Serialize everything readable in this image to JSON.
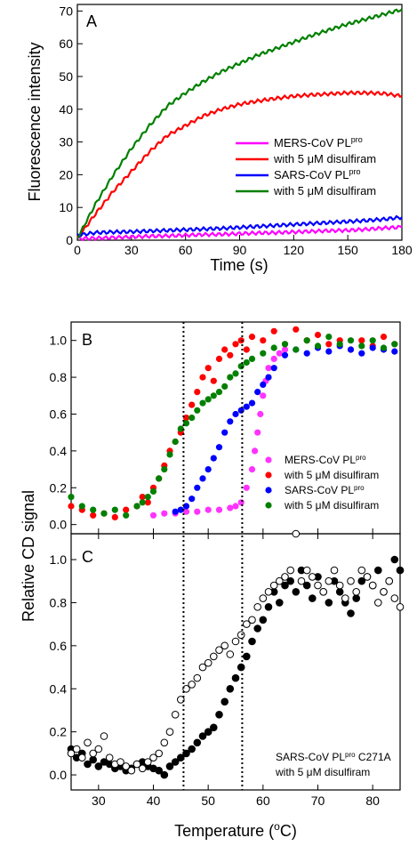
{
  "chart_data": [
    {
      "type": "line",
      "panel_label": "A",
      "xlabel": "Time (s)",
      "ylabel": "Fluorescence intensity",
      "xlim": [
        0,
        180
      ],
      "ylim": [
        0,
        72
      ],
      "xticks": [
        0,
        30,
        60,
        90,
        120,
        150,
        180
      ],
      "yticks": [
        0,
        10,
        20,
        30,
        40,
        50,
        60,
        70
      ],
      "legend_position": "center-right",
      "series": [
        {
          "name": "MERS-CoV PL",
          "name_sup": "pro",
          "color": "#ff00ff",
          "x": [
            0,
            10,
            20,
            30,
            40,
            50,
            60,
            70,
            80,
            90,
            100,
            110,
            120,
            130,
            140,
            150,
            160,
            170,
            180
          ],
          "y": [
            0.5,
            0.6,
            0.8,
            1.0,
            1.2,
            1.3,
            1.5,
            1.7,
            1.8,
            2.0,
            2.2,
            2.3,
            2.5,
            2.7,
            2.9,
            3.0,
            3.3,
            3.7,
            4.0
          ]
        },
        {
          "name": "with 5 μM disulfiram",
          "color": "#ff0000",
          "x": [
            0,
            10,
            20,
            30,
            40,
            50,
            60,
            70,
            80,
            90,
            100,
            110,
            120,
            130,
            140,
            150,
            160,
            170,
            180
          ],
          "y": [
            0.5,
            8,
            15,
            21,
            27,
            32,
            35,
            38,
            40,
            41.5,
            42.5,
            43.3,
            44,
            44.4,
            44.7,
            45,
            45,
            44.8,
            44
          ]
        },
        {
          "name": "SARS-CoV PL",
          "name_sup": "pro",
          "color": "#0000ff",
          "x": [
            0,
            10,
            20,
            30,
            40,
            50,
            60,
            70,
            80,
            90,
            100,
            110,
            120,
            130,
            140,
            150,
            160,
            170,
            180
          ],
          "y": [
            1.5,
            2.3,
            2.5,
            2.6,
            2.8,
            3.0,
            3.2,
            3.4,
            3.6,
            3.9,
            4.2,
            4.5,
            4.8,
            5.1,
            5.4,
            5.7,
            6.0,
            6.4,
            7.0
          ]
        },
        {
          "name": "with 5 μM disulfiram",
          "color": "#008000",
          "x": [
            0,
            10,
            20,
            30,
            40,
            50,
            60,
            70,
            80,
            90,
            100,
            110,
            120,
            130,
            140,
            150,
            160,
            170,
            180
          ],
          "y": [
            0.5,
            11,
            20,
            28,
            35,
            41,
            45,
            48.5,
            51.5,
            54,
            56.5,
            58.5,
            60.5,
            62.5,
            64.3,
            66,
            67.5,
            69,
            70.5
          ]
        }
      ]
    },
    {
      "type": "scatter",
      "panel_label": "B",
      "xlim": [
        25,
        85
      ],
      "ylim": [
        -0.05,
        1.1
      ],
      "yticks": [
        "0.0",
        "0.2",
        "0.4",
        "0.6",
        "0.8",
        "1.0"
      ],
      "legend_position": "bottom-right",
      "series": [
        {
          "name": "MERS-CoV PL",
          "name_sup": "pro",
          "color": "#ff33ff",
          "x": [
            40,
            42,
            44,
            46,
            48,
            50,
            52,
            54,
            55,
            56,
            57,
            58,
            58.5,
            59,
            59.5,
            60,
            60.5,
            61,
            62,
            63,
            64
          ],
          "y": [
            0.05,
            0.06,
            0.06,
            0.07,
            0.07,
            0.08,
            0.08,
            0.09,
            0.1,
            0.12,
            0.2,
            0.3,
            0.4,
            0.5,
            0.6,
            0.7,
            0.78,
            0.85,
            0.9,
            0.93,
            0.95
          ]
        },
        {
          "name": "with 5 μM disulfiram",
          "color": "#ff0000",
          "x": [
            25,
            27,
            29,
            31,
            33,
            35,
            37,
            38,
            39,
            40,
            41,
            42,
            43,
            44,
            45,
            46,
            47,
            48,
            49,
            50,
            51,
            52,
            53,
            54,
            55,
            56,
            57,
            58,
            60,
            62,
            64,
            66,
            68,
            70,
            72,
            74,
            76,
            78,
            80,
            82,
            84
          ],
          "y": [
            0.1,
            0.08,
            0.05,
            0.06,
            0.04,
            0.08,
            0.1,
            0.15,
            0.12,
            0.2,
            0.25,
            0.32,
            0.4,
            0.45,
            0.5,
            0.58,
            0.65,
            0.72,
            0.8,
            0.85,
            0.78,
            0.9,
            0.95,
            0.92,
            0.98,
            1.0,
            0.95,
            1.02,
            1.0,
            1.05,
            0.98,
            1.06,
            1.0,
            1.03,
            0.98,
            1.0,
            0.95,
            1.0,
            0.97,
            1.02,
            0.98
          ]
        },
        {
          "name": "SARS-CoV PL",
          "name_sup": "pro",
          "color": "#0000ff",
          "x": [
            44,
            45,
            46,
            47,
            48,
            49,
            50,
            51,
            52,
            53,
            54,
            55,
            56,
            57,
            58,
            59,
            60,
            61,
            62,
            64,
            66,
            68,
            70,
            72,
            74,
            76,
            78,
            80,
            82,
            84
          ],
          "y": [
            0.07,
            0.08,
            0.1,
            0.14,
            0.2,
            0.25,
            0.3,
            0.36,
            0.42,
            0.5,
            0.56,
            0.6,
            0.62,
            0.64,
            0.66,
            0.72,
            0.76,
            0.8,
            0.85,
            0.92,
            0.95,
            0.93,
            0.96,
            0.94,
            0.97,
            0.95,
            0.93,
            0.96,
            0.95,
            0.94
          ]
        },
        {
          "name": "with 5 μM disulfiram",
          "color": "#008000",
          "x": [
            25,
            27,
            29,
            31,
            33,
            35,
            37,
            38,
            39,
            40,
            41,
            42,
            43,
            44,
            45,
            46,
            47,
            48,
            49,
            50,
            51,
            52,
            53,
            54,
            55,
            56,
            57,
            58,
            60,
            62,
            64,
            66,
            68,
            70,
            72,
            74,
            76,
            78,
            80,
            82,
            84
          ],
          "y": [
            0.15,
            0.1,
            0.08,
            0.06,
            0.08,
            0.05,
            0.1,
            0.12,
            0.15,
            0.18,
            0.25,
            0.3,
            0.38,
            0.45,
            0.52,
            0.55,
            0.58,
            0.62,
            0.66,
            0.68,
            0.7,
            0.72,
            0.75,
            0.8,
            0.82,
            0.86,
            0.88,
            0.9,
            0.93,
            0.96,
            0.98,
            0.95,
            1.0,
            0.97,
            1.02,
            0.98,
            1.0,
            0.97,
            1.0,
            0.96,
            0.98
          ]
        }
      ]
    },
    {
      "type": "scatter",
      "panel_label": "C",
      "xlabel": "Temperature (",
      "xlabel_sup": "o",
      "xlabel_suffix": "C)",
      "xlim": [
        25,
        85
      ],
      "ylim": [
        -0.07,
        1.12
      ],
      "xticks": [
        30,
        40,
        50,
        60,
        70,
        80
      ],
      "yticks": [
        "0.0",
        "0.2",
        "0.4",
        "0.6",
        "0.8",
        "1.0"
      ],
      "legend_position": "bottom-right",
      "annotation_line1": "SARS-CoV PL",
      "annotation_sup": "pro",
      "annotation_suffix": " C271A",
      "annotation_line2": "with 5 μM disulfiram",
      "series": [
        {
          "name": "filled",
          "color": "#000000",
          "fill": true,
          "x": [
            25,
            26,
            27,
            28,
            29,
            30,
            31,
            32,
            33,
            34,
            35,
            36,
            37,
            38,
            39,
            40,
            41,
            42,
            43,
            44,
            45,
            46,
            47,
            48,
            49,
            50,
            51,
            52,
            53,
            54,
            55,
            56,
            57,
            58,
            59,
            60,
            61,
            62,
            63,
            64,
            65,
            66,
            67,
            68,
            69,
            70,
            71,
            72,
            73,
            74,
            75,
            76,
            77,
            78,
            79,
            80,
            81,
            82,
            83,
            84,
            85
          ],
          "y": [
            0.12,
            0.08,
            0.1,
            0.05,
            0.07,
            0.04,
            0.06,
            0.05,
            0.03,
            0.04,
            0.02,
            0.03,
            0.05,
            0.06,
            0.04,
            0.03,
            0.02,
            0.0,
            0.04,
            0.06,
            0.08,
            0.1,
            0.12,
            0.15,
            0.18,
            0.2,
            0.22,
            0.28,
            0.34,
            0.4,
            0.45,
            0.5,
            0.55,
            0.62,
            0.68,
            0.72,
            0.78,
            0.85,
            0.8,
            0.88,
            0.9,
            0.85,
            0.95,
            0.88,
            0.82,
            0.92,
            0.85,
            0.8,
            0.9,
            0.85,
            0.8,
            0.75,
            0.82,
            0.9,
            0.92,
            0.88,
            0.95,
            0.85,
            0.9,
            1.0,
            0.95
          ]
        },
        {
          "name": "open",
          "color": "#000000",
          "fill": false,
          "x": [
            25,
            26,
            27,
            28,
            29,
            30,
            31,
            32,
            33,
            34,
            35,
            36,
            37,
            38,
            39,
            40,
            41,
            42,
            43,
            44,
            45,
            46,
            47,
            48,
            49,
            50,
            51,
            52,
            53,
            54,
            55,
            56,
            57,
            58,
            59,
            60,
            61,
            62,
            63,
            64,
            65,
            66,
            67,
            68,
            69,
            70,
            71,
            72,
            73,
            74,
            75,
            76,
            77,
            78,
            79,
            80,
            81,
            82,
            83,
            84,
            85
          ],
          "y": [
            0.1,
            0.12,
            0.08,
            0.15,
            0.1,
            0.12,
            0.18,
            0.08,
            0.05,
            0.06,
            0.04,
            0.02,
            0.05,
            0.03,
            0.06,
            0.08,
            0.1,
            0.15,
            0.2,
            0.28,
            0.35,
            0.4,
            0.42,
            0.45,
            0.5,
            0.52,
            0.55,
            0.58,
            0.6,
            0.56,
            0.62,
            0.65,
            0.7,
            0.72,
            0.78,
            0.82,
            0.85,
            0.88,
            0.9,
            0.92,
            0.95,
            1.12,
            0.9,
            0.95,
            0.92,
            0.88,
            0.85,
            0.9,
            0.95,
            0.88,
            0.82,
            0.9,
            0.85,
            0.95,
            0.92,
            0.88,
            0.8,
            0.85,
            0.9,
            0.82,
            0.78
          ]
        }
      ]
    }
  ],
  "shared": {
    "ylabel_BC": "Relative CD signal",
    "vlines_x": [
      45.5,
      56.2
    ]
  }
}
